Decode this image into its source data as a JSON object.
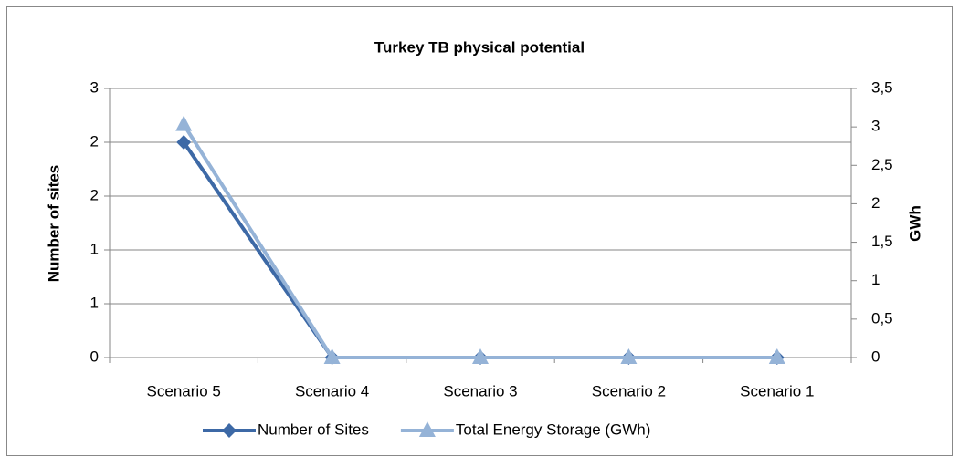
{
  "chart_data": {
    "type": "line",
    "title": "Turkey TB physical  potential",
    "categories": [
      "Scenario 5",
      "Scenario 4",
      "Scenario 3",
      "Scenario 2",
      "Scenario 1"
    ],
    "ylabel": "Number of sites",
    "y2label": "GWh",
    "ylim": [
      0,
      2.5
    ],
    "yticks": [
      0,
      {
        "value": 0.5,
        "label": "1"
      },
      1,
      {
        "value": 1.5,
        "label": "2"
      },
      2,
      {
        "value": 2.5,
        "label": "3"
      }
    ],
    "y2lim": [
      0,
      3.5
    ],
    "y2ticks": [
      0,
      {
        "value": 0.5,
        "label": "0,5"
      },
      1,
      {
        "value": 1.5,
        "label": "1,5"
      },
      2,
      {
        "value": 2.5,
        "label": "2,5"
      },
      3,
      {
        "value": 3.5,
        "label": "3,5"
      }
    ],
    "grid": true,
    "legend": "bottom",
    "series": [
      {
        "name": "Number of Sites",
        "color": "#3d69a6",
        "marker": "diamond",
        "values": [
          2,
          0,
          0,
          0,
          0
        ]
      },
      {
        "name": "Total Energy Storage (GWh)",
        "color": "#95b3d7",
        "marker": "triangle",
        "axis": "y2",
        "values": [
          3.03,
          0,
          0,
          0,
          0
        ]
      }
    ]
  }
}
